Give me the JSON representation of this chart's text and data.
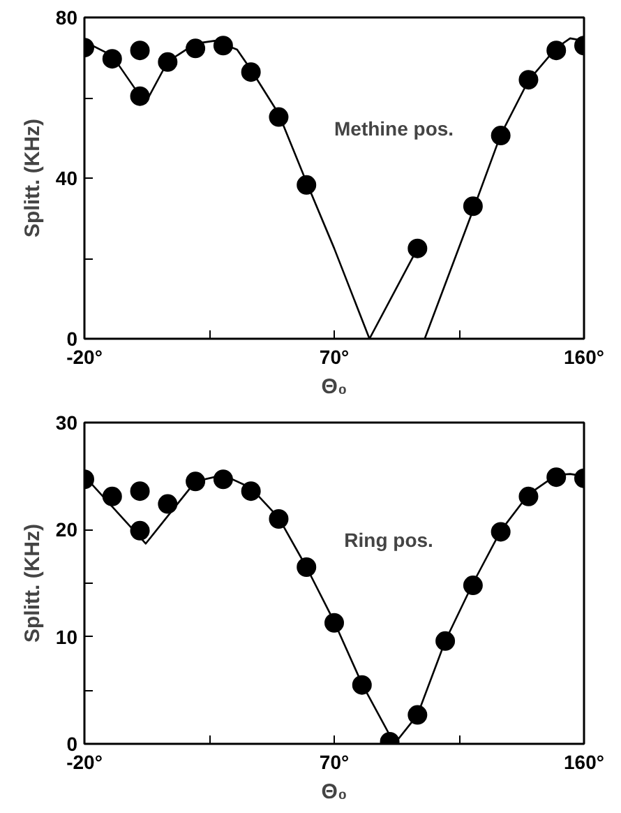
{
  "chart_data": [
    {
      "type": "scatter",
      "xlabel": "Θ₀",
      "ylabel": "Splitt. (KHz)",
      "annotations": [
        "Methine pos."
      ],
      "xlim": [
        -20,
        160
      ],
      "ylim": [
        0,
        80
      ],
      "xticks": [
        {
          "value": -20,
          "label": "-20°"
        },
        {
          "value": 25,
          "label": null
        },
        {
          "value": 70,
          "label": "70°"
        },
        {
          "value": 115,
          "label": null
        },
        {
          "value": 160,
          "label": "160°"
        }
      ],
      "yticks": [
        0,
        {
          "value": 20,
          "label": null
        },
        40,
        {
          "value": 60,
          "label": null
        },
        80
      ],
      "grid": false,
      "series": [
        {
          "marker": "circle",
          "color": "#000000",
          "x": [
            -20,
            -10,
            0,
            0,
            10,
            20,
            30,
            40,
            50,
            60,
            100,
            120,
            130,
            140,
            150,
            160
          ],
          "values": [
            72.5,
            69.7,
            60.4,
            71.8,
            68.9,
            72.3,
            73,
            66.4,
            55.2,
            38.3,
            22.5,
            33,
            50.6,
            64.5,
            71.8,
            73
          ]
        },
        {
          "type": "line",
          "marker": "none",
          "color": "#000000",
          "line_style": "solid",
          "x": [
            -20,
            -10,
            0,
            2,
            10,
            20,
            27,
            35,
            40,
            50,
            60,
            70,
            82.7,
            100,
            101,
            102.6,
            120,
            130,
            140,
            150,
            155,
            160
          ],
          "values": [
            74,
            70.5,
            60.5,
            58.7,
            69,
            73.5,
            74.2,
            72,
            67,
            56,
            39,
            22.5,
            0,
            22.5,
            null,
            0,
            32,
            50.8,
            64.3,
            72.4,
            74.8,
            74.2
          ]
        }
      ]
    },
    {
      "type": "scatter",
      "xlabel": "Θ₀",
      "ylabel": "Splitt. (KHz)",
      "annotations": [
        "Ring pos."
      ],
      "xlim": [
        -20,
        160
      ],
      "ylim": [
        0,
        30
      ],
      "xticks": [
        {
          "value": -20,
          "label": "-20°"
        },
        {
          "value": 25,
          "label": null
        },
        {
          "value": 70,
          "label": "70°"
        },
        {
          "value": 115,
          "label": null
        },
        {
          "value": 160,
          "label": "160°"
        }
      ],
      "yticks": [
        0,
        {
          "value": 5,
          "label": null
        },
        10,
        {
          "value": 15,
          "label": null
        },
        20,
        {
          "value": 25,
          "label": null
        },
        30
      ],
      "grid": false,
      "series": [
        {
          "marker": "circle",
          "color": "#000000",
          "x": [
            -20,
            -10,
            0,
            0,
            10,
            20,
            30,
            40,
            50,
            60,
            70,
            80,
            90,
            100,
            110,
            120,
            130,
            140,
            150,
            160
          ],
          "values": [
            24.7,
            23.1,
            19.9,
            23.6,
            22.4,
            24.5,
            24.7,
            23.6,
            21,
            16.5,
            11.3,
            5.5,
            0.2,
            2.7,
            9.6,
            14.8,
            19.8,
            23.1,
            24.9,
            24.8
          ]
        },
        {
          "type": "line",
          "marker": "none",
          "color": "#000000",
          "line_style": "solid",
          "x": [
            -20,
            2.1,
            20,
            30,
            40,
            50,
            60,
            70,
            80,
            91.7,
            100,
            110,
            120,
            130,
            140,
            150,
            155,
            160
          ],
          "values": [
            25,
            18.7,
            24.5,
            25.1,
            23.9,
            21.1,
            16.5,
            11.4,
            5.6,
            0,
            2.7,
            9.6,
            15,
            19.9,
            23.3,
            25.1,
            25.2,
            25
          ]
        }
      ]
    }
  ]
}
